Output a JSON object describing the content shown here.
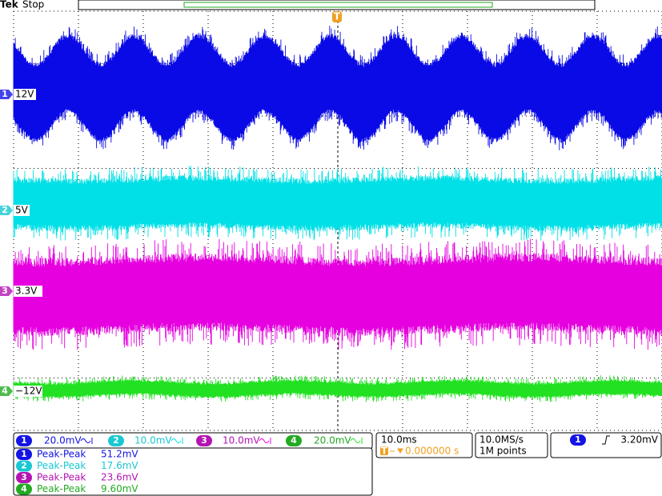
{
  "header": {
    "brand": "Tek",
    "status": "Stop",
    "trigger_marker": "T"
  },
  "channels": [
    {
      "number": "1",
      "label": "12V",
      "scale": "20.0mV",
      "measurement": "Peak-Peak",
      "value": "51.2mV"
    },
    {
      "number": "2",
      "label": "5V",
      "scale": "10.0mV",
      "measurement": "Peak-Peak",
      "value": "17.6mV"
    },
    {
      "number": "3",
      "label": "3.3V",
      "scale": "10.0mV",
      "measurement": "Peak-Peak",
      "value": "23.6mV"
    },
    {
      "number": "4",
      "label": "−12V",
      "scale": "20.0mV",
      "measurement": "Peak-Peak",
      "value": "9.60mV"
    }
  ],
  "timebase": {
    "scale": "10.0ms",
    "position": "0.000000 s"
  },
  "acquisition": {
    "rate": "10.0MS/s",
    "record": "1M points"
  },
  "trigger": {
    "channel": "1",
    "level": "3.20mV"
  }
}
